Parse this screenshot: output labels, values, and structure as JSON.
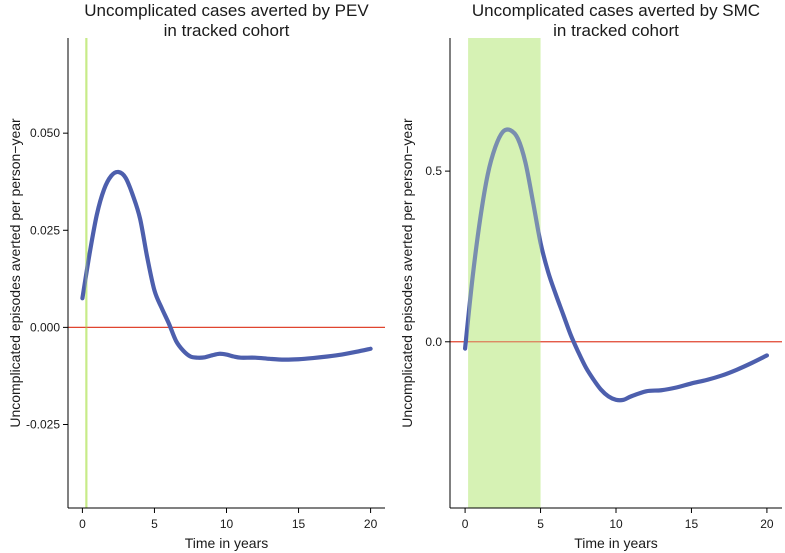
{
  "chart_data": [
    {
      "type": "line",
      "title": [
        "Uncomplicated cases averted by PEV",
        "in tracked cohort"
      ],
      "xlabel": "Time in years",
      "ylabel": "Uncomplicated episodes averted per person−year",
      "xlim": [
        -1,
        21
      ],
      "ylim": [
        -0.0465,
        0.0745
      ],
      "xticks": [
        0,
        5,
        10,
        15,
        20
      ],
      "yticks": [
        -0.025,
        0.0,
        0.025,
        0.05
      ],
      "ytick_labels": [
        "-0.025",
        "0.000",
        "0.025",
        "0.050"
      ],
      "reference_line": {
        "y": 0,
        "color": "#e0452f"
      },
      "highlight": {
        "x0": 0.2,
        "x1": 0.35,
        "color": "#c8eb8a"
      },
      "series": [
        {
          "name": "PEV",
          "color": "#4d5fad",
          "x": [
            0,
            0.5,
            1,
            1.5,
            2,
            2.5,
            3,
            3.5,
            4,
            4.5,
            5,
            5.5,
            6,
            6.5,
            7,
            7.5,
            8,
            8.5,
            9,
            9.5,
            10,
            10.5,
            11,
            12,
            13,
            14,
            15,
            16,
            17,
            18,
            19,
            20
          ],
          "values": [
            0.0075,
            0.019,
            0.029,
            0.0355,
            0.039,
            0.04,
            0.0385,
            0.034,
            0.028,
            0.018,
            0.0095,
            0.005,
            0.001,
            -0.0035,
            -0.006,
            -0.0075,
            -0.0078,
            -0.0077,
            -0.0072,
            -0.0068,
            -0.007,
            -0.0075,
            -0.0078,
            -0.0078,
            -0.0081,
            -0.0083,
            -0.0082,
            -0.0079,
            -0.0075,
            -0.007,
            -0.0063,
            -0.0055
          ]
        }
      ]
    },
    {
      "type": "line",
      "title": [
        "Uncomplicated cases averted by SMC",
        "in tracked cohort"
      ],
      "xlabel": "Time in years",
      "ylabel": "Uncomplicated episodes averted per person−year",
      "xlim": [
        -1,
        21
      ],
      "ylim": [
        -0.487,
        0.89
      ],
      "xticks": [
        0,
        5,
        10,
        15,
        20
      ],
      "yticks": [
        0.0,
        0.5
      ],
      "ytick_labels": [
        "0.0",
        "0.5"
      ],
      "reference_line": {
        "y": 0,
        "color": "#e0452f"
      },
      "highlight": {
        "x0": 0.2,
        "x1": 5.0,
        "color": "#d6f2b4"
      },
      "series": [
        {
          "name": "SMC",
          "color": "#4d5fad",
          "x": [
            0,
            0.5,
            1,
            1.5,
            2,
            2.5,
            3,
            3.5,
            4,
            4.5,
            5,
            5.5,
            6,
            6.5,
            7,
            7.5,
            8,
            8.5,
            9,
            9.5,
            10,
            10.5,
            11,
            12,
            13,
            14,
            15,
            16,
            17,
            18,
            19,
            20
          ],
          "values": [
            -0.02,
            0.19,
            0.36,
            0.49,
            0.57,
            0.615,
            0.62,
            0.595,
            0.525,
            0.41,
            0.29,
            0.205,
            0.14,
            0.08,
            0.02,
            -0.03,
            -0.075,
            -0.11,
            -0.14,
            -0.16,
            -0.17,
            -0.17,
            -0.16,
            -0.145,
            -0.142,
            -0.134,
            -0.122,
            -0.112,
            -0.099,
            -0.082,
            -0.062,
            -0.04
          ]
        }
      ]
    }
  ]
}
